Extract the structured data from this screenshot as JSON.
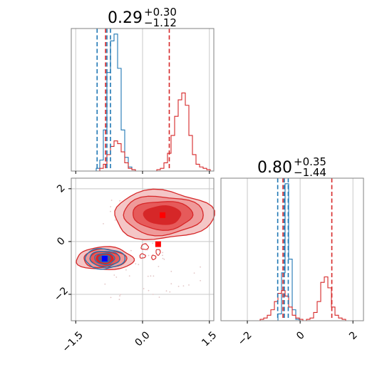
{
  "chart_data": [
    {
      "type": "histogram",
      "panel": "top-left marginal",
      "title": {
        "value": "0.29",
        "plus": "+0.30",
        "minus": "−1.12"
      },
      "xlim": [
        -1.6,
        1.6
      ],
      "grid": true,
      "series": [
        {
          "color": "#1f77b4",
          "bin_start": -1.6,
          "bin_width": 0.08,
          "counts": [
            0,
            0,
            0,
            0,
            0,
            0,
            0,
            0.02,
            0.08,
            0.3,
            0.72,
            0.95,
            1.0,
            0.75,
            0.3,
            0.1,
            0.03,
            0.01,
            0,
            0,
            0,
            0,
            0,
            0,
            0,
            0,
            0,
            0,
            0,
            0,
            0,
            0,
            0,
            0,
            0,
            0,
            0,
            0,
            0,
            0
          ],
          "quantile_lines": [
            -1.02,
            -0.8,
            -0.72
          ]
        },
        {
          "color": "#d62728",
          "bin_start": -1.6,
          "bin_width": 0.08,
          "counts": [
            0,
            0,
            0,
            0,
            0,
            0,
            0,
            0,
            0.02,
            0.05,
            0.12,
            0.18,
            0.22,
            0.2,
            0.14,
            0.06,
            0.02,
            0.01,
            0,
            0,
            0,
            0,
            0,
            0,
            0.01,
            0.02,
            0.06,
            0.13,
            0.26,
            0.4,
            0.52,
            0.57,
            0.48,
            0.26,
            0.12,
            0.05,
            0.03,
            0.02,
            0.01,
            0
          ],
          "quantile_lines": [
            -0.83,
            0.6
          ]
        }
      ]
    },
    {
      "type": "contour",
      "panel": "bottom-left joint",
      "xlim": [
        -1.6,
        1.6
      ],
      "ylim": [
        -3.0,
        2.4
      ],
      "xticks": [
        "−1.5",
        "0.0",
        "1.5"
      ],
      "yticks": [
        "−2",
        "0",
        "2"
      ],
      "grid": true,
      "series": [
        {
          "color": "#1f77b4",
          "mode": {
            "x": -0.85,
            "y": -0.65
          },
          "marker_color": "#0000ff"
        },
        {
          "color": "#d62728",
          "modes": [
            {
              "x": -0.85,
              "y": -0.65
            },
            {
              "x": 0.45,
              "y": 1.0
            }
          ],
          "median_marker": {
            "x": 0.35,
            "y": -0.1
          }
        }
      ]
    },
    {
      "type": "histogram",
      "panel": "bottom-right marginal",
      "title": {
        "value": "0.80",
        "plus": "+0.35",
        "minus": "−1.44"
      },
      "xlim": [
        -3.0,
        2.4
      ],
      "xticks": [
        "−2",
        "0",
        "2"
      ],
      "grid": true,
      "series": [
        {
          "color": "#1f77b4",
          "bin_start": -3.0,
          "bin_width": 0.135,
          "counts": [
            0,
            0,
            0,
            0,
            0,
            0,
            0,
            0,
            0,
            0,
            0,
            0,
            0,
            0,
            0,
            0,
            0.05,
            0.35,
            1.0,
            0.45,
            0.08,
            0.01,
            0,
            0,
            0,
            0,
            0,
            0,
            0,
            0,
            0,
            0,
            0,
            0,
            0,
            0,
            0,
            0,
            0,
            0
          ],
          "quantile_lines": [
            -0.85,
            -0.6,
            -0.45
          ]
        },
        {
          "color": "#d62728",
          "bin_start": -3.0,
          "bin_width": 0.135,
          "counts": [
            0,
            0,
            0,
            0,
            0,
            0,
            0,
            0,
            0,
            0,
            0,
            0.01,
            0.02,
            0.04,
            0.08,
            0.14,
            0.2,
            0.22,
            0.18,
            0.1,
            0.04,
            0.02,
            0.01,
            0,
            0.01,
            0.02,
            0.06,
            0.14,
            0.28,
            0.32,
            0.24,
            0.1,
            0.04,
            0.02,
            0.01,
            0,
            0,
            0,
            0,
            0
          ],
          "quantile_lines": [
            -0.65,
            1.2
          ]
        }
      ]
    }
  ]
}
